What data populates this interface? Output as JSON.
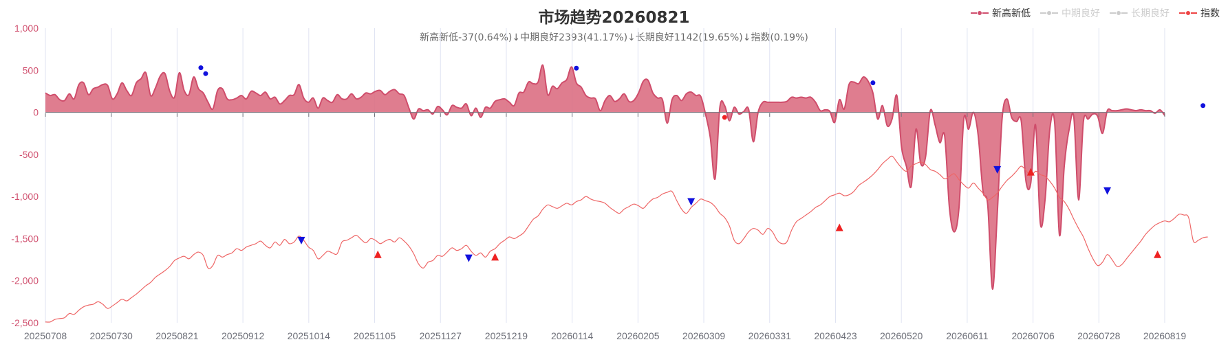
{
  "title": "市场趋势20260821",
  "subtitle": "新高新低-37(0.64%)↓中期良好2393(41.17%)↓长期良好1142(19.65%)↓指数(0.19%)",
  "legend": [
    {
      "name": "新高新低",
      "color": "#d04f6e",
      "active": true
    },
    {
      "name": "中期良好",
      "color": "#cccccc",
      "active": false
    },
    {
      "name": "长期良好",
      "color": "#cccccc",
      "active": false
    },
    {
      "name": "指数",
      "color": "#ee4444",
      "active": true
    }
  ],
  "chart_data": {
    "type": "area",
    "yaxis": {
      "min": -2500,
      "max": 1000,
      "ticks": [
        "1,000",
        "500",
        "0",
        "-500",
        "-1,000",
        "-1,500",
        "-2,000",
        "-2,500"
      ]
    },
    "x_labels": [
      "20250708",
      "20250730",
      "20250821",
      "20250912",
      "20251014",
      "20251105",
      "20251127",
      "20251219",
      "20260114",
      "20260205",
      "20260309",
      "20260331",
      "20260423",
      "20260520",
      "20260611",
      "20260706",
      "20260728",
      "20260819"
    ],
    "colors": {
      "area_line": "#cf4d6b",
      "area_fill": "#db6f83",
      "index_line": "#ee6666",
      "grid": "#dfe3f2",
      "axis": "#6e7079"
    },
    "series": [
      {
        "name": "新高新低",
        "values": [
          230,
          200,
          210,
          150,
          140,
          220,
          160,
          330,
          350,
          210,
          280,
          300,
          330,
          320,
          160,
          220,
          350,
          260,
          200,
          350,
          400,
          470,
          200,
          290,
          430,
          460,
          250,
          180,
          470,
          260,
          210,
          420,
          280,
          230,
          120,
          40,
          260,
          280,
          160,
          150,
          170,
          200,
          160,
          250,
          230,
          200,
          240,
          160,
          180,
          100,
          140,
          200,
          210,
          330,
          170,
          120,
          170,
          50,
          170,
          140,
          120,
          210,
          160,
          160,
          220,
          160,
          180,
          230,
          220,
          250,
          260,
          210,
          250,
          270,
          220,
          200,
          50,
          -80,
          40,
          20,
          30,
          -20,
          70,
          30,
          -30,
          80,
          60,
          50,
          100,
          -40,
          50,
          -60,
          60,
          50,
          130,
          150,
          160,
          120,
          80,
          230,
          240,
          360,
          340,
          360,
          560,
          210,
          310,
          280,
          350,
          390,
          540,
          350,
          300,
          200,
          170,
          160,
          20,
          140,
          200,
          130,
          160,
          220,
          130,
          140,
          230,
          370,
          380,
          230,
          170,
          150,
          -130,
          150,
          200,
          140,
          220,
          240,
          200,
          190,
          -20,
          -300,
          -790,
          60,
          80,
          -100,
          60,
          -20,
          10,
          40,
          -350,
          0,
          120,
          120,
          120,
          120,
          120,
          130,
          180,
          170,
          180,
          170,
          180,
          120,
          20,
          30,
          10,
          -120,
          150,
          40,
          330,
          360,
          340,
          420,
          370,
          230,
          -80,
          80,
          -160,
          -80,
          200,
          -420,
          -640,
          -880,
          -200,
          -610,
          -530,
          20,
          -150,
          -360,
          -280,
          -1140,
          -1420,
          -1130,
          -80,
          -200,
          0,
          -270,
          -930,
          -1100,
          -2100,
          -1200,
          -80,
          160,
          -60,
          -110,
          -100,
          -820,
          -840,
          -150,
          -1320,
          -1030,
          -190,
          -130,
          -1460,
          -640,
          -210,
          -60,
          -1040,
          -110,
          -80,
          -20,
          -50,
          -250,
          20,
          20,
          20,
          30,
          40,
          30,
          20,
          30,
          20,
          20,
          -10,
          30,
          -37
        ]
      },
      {
        "name": "指数",
        "values": [
          -2490,
          -2490,
          -2460,
          -2450,
          -2440,
          -2390,
          -2400,
          -2350,
          -2310,
          -2290,
          -2280,
          -2250,
          -2280,
          -2330,
          -2300,
          -2260,
          -2220,
          -2240,
          -2200,
          -2160,
          -2110,
          -2060,
          -2020,
          -1960,
          -1920,
          -1880,
          -1830,
          -1760,
          -1730,
          -1710,
          -1740,
          -1690,
          -1660,
          -1700,
          -1850,
          -1820,
          -1700,
          -1720,
          -1690,
          -1670,
          -1620,
          -1640,
          -1600,
          -1580,
          -1560,
          -1530,
          -1580,
          -1610,
          -1540,
          -1580,
          -1510,
          -1560,
          -1540,
          -1470,
          -1520,
          -1600,
          -1640,
          -1740,
          -1700,
          -1650,
          -1670,
          -1680,
          -1540,
          -1520,
          -1490,
          -1460,
          -1510,
          -1550,
          -1500,
          -1520,
          -1560,
          -1530,
          -1510,
          -1540,
          -1490,
          -1530,
          -1590,
          -1680,
          -1800,
          -1850,
          -1780,
          -1760,
          -1700,
          -1710,
          -1660,
          -1610,
          -1640,
          -1620,
          -1580,
          -1650,
          -1700,
          -1670,
          -1720,
          -1650,
          -1620,
          -1560,
          -1520,
          -1480,
          -1500,
          -1470,
          -1430,
          -1350,
          -1270,
          -1230,
          -1150,
          -1100,
          -1120,
          -1140,
          -1110,
          -1080,
          -1100,
          -1060,
          -1040,
          -1000,
          -1030,
          -1050,
          -1060,
          -1080,
          -1130,
          -1170,
          -1200,
          -1150,
          -1120,
          -1090,
          -1110,
          -1140,
          -1080,
          -1030,
          -1010,
          -970,
          -950,
          -940,
          -1050,
          -1150,
          -1200,
          -1130,
          -1080,
          -1030,
          -1050,
          -1070,
          -1120,
          -1200,
          -1250,
          -1350,
          -1520,
          -1560,
          -1500,
          -1420,
          -1380,
          -1400,
          -1450,
          -1380,
          -1420,
          -1520,
          -1560,
          -1540,
          -1400,
          -1300,
          -1260,
          -1220,
          -1180,
          -1130,
          -1100,
          -1050,
          -1000,
          -980,
          -960,
          -990,
          -980,
          -940,
          -870,
          -830,
          -790,
          -740,
          -680,
          -610,
          -560,
          -520,
          -590,
          -660,
          -700,
          -640,
          -610,
          -590,
          -620,
          -680,
          -700,
          -740,
          -790,
          -760,
          -730,
          -800,
          -860,
          -900,
          -840,
          -900,
          -960,
          -1040,
          -1010,
          -960,
          -880,
          -810,
          -760,
          -700,
          -640,
          -690,
          -760,
          -700,
          -740,
          -760,
          -820,
          -900,
          -1010,
          -1060,
          -1150,
          -1270,
          -1380,
          -1480,
          -1620,
          -1740,
          -1820,
          -1780,
          -1690,
          -1750,
          -1830,
          -1810,
          -1740,
          -1670,
          -1600,
          -1530,
          -1450,
          -1390,
          -1340,
          -1310,
          -1290,
          -1300,
          -1260,
          -1210,
          -1220,
          -1250,
          -1530,
          -1520,
          -1490,
          -1480
        ]
      }
    ],
    "markers": [
      {
        "series": "新高新低",
        "shape": "circle",
        "color": "#1111dd",
        "x": 32.5,
        "y": 530
      },
      {
        "series": "新高新低",
        "shape": "circle",
        "color": "#1111dd",
        "x": 33.5,
        "y": 460
      },
      {
        "series": "新高新低",
        "shape": "circle",
        "color": "#1111dd",
        "x": 111,
        "y": 525
      },
      {
        "series": "新高新低",
        "shape": "circle",
        "color": "#ee2222",
        "x": 142,
        "y": -60
      },
      {
        "series": "新高新低",
        "shape": "circle",
        "color": "#1111dd",
        "x": 173,
        "y": 350
      },
      {
        "series": "新高新低",
        "shape": "circle",
        "color": "#1111dd",
        "x": 242,
        "y": 80
      },
      {
        "series": "指数",
        "shape": "triangle-down",
        "color": "#1111dd",
        "x": 53.5,
        "y": -1520
      },
      {
        "series": "指数",
        "shape": "triangle-up",
        "color": "#ee2222",
        "x": 69.5,
        "y": -1690
      },
      {
        "series": "指数",
        "shape": "triangle-down",
        "color": "#1111dd",
        "x": 88.5,
        "y": -1730
      },
      {
        "series": "指数",
        "shape": "triangle-up",
        "color": "#ee2222",
        "x": 94,
        "y": -1720
      },
      {
        "series": "指数",
        "shape": "triangle-down",
        "color": "#1111dd",
        "x": 135,
        "y": -1060
      },
      {
        "series": "指数",
        "shape": "triangle-up",
        "color": "#ee2222",
        "x": 166,
        "y": -1370
      },
      {
        "series": "指数",
        "shape": "triangle-down",
        "color": "#1111dd",
        "x": 199,
        "y": -680
      },
      {
        "series": "指数",
        "shape": "triangle-up",
        "color": "#ee2222",
        "x": 206,
        "y": -710
      },
      {
        "series": "指数",
        "shape": "triangle-down",
        "color": "#1111dd",
        "x": 222,
        "y": -930
      },
      {
        "series": "指数",
        "shape": "triangle-up",
        "color": "#ee2222",
        "x": 232.5,
        "y": -1690
      }
    ]
  }
}
